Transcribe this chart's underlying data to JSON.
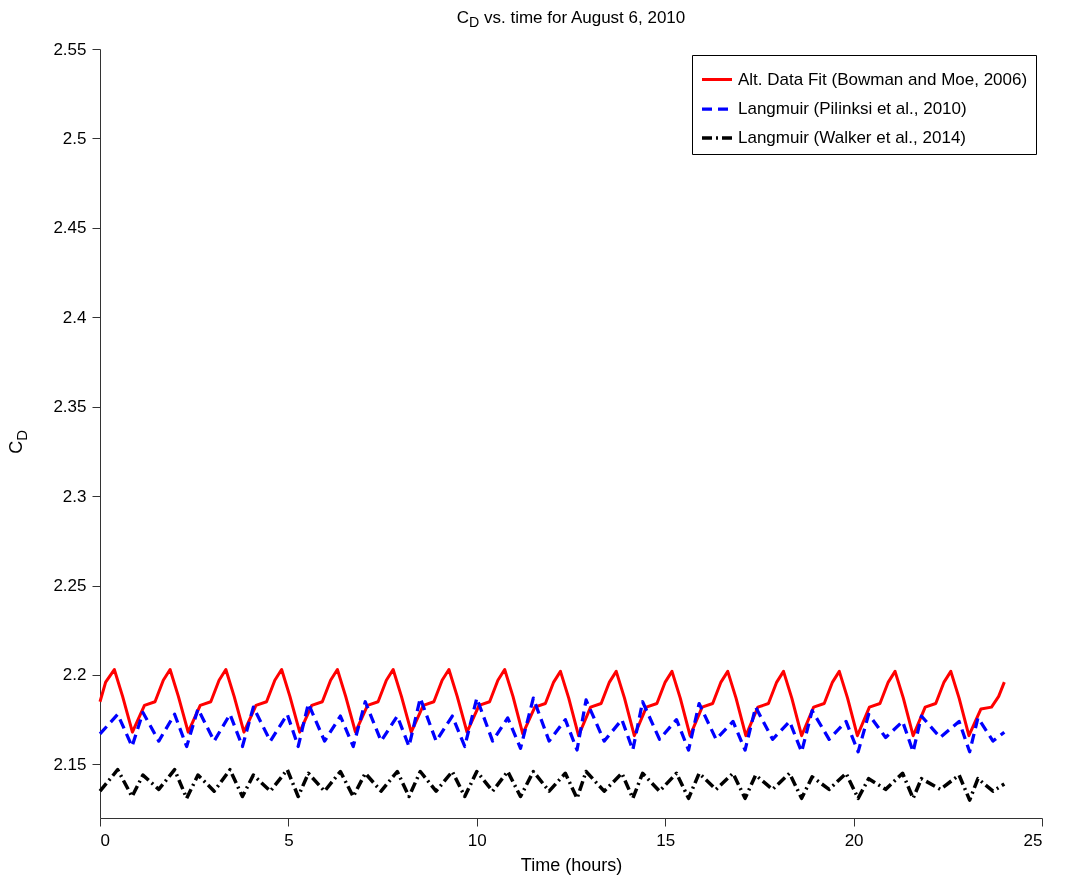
{
  "chart_data": {
    "type": "line",
    "title": "C$_{D}$ vs. time for August 6, 2010",
    "xlabel": "Time (hours)",
    "ylabel": "C$_{D}$",
    "xlim": [
      0,
      25
    ],
    "xticks": [
      0,
      5,
      10,
      15,
      20,
      25
    ],
    "ylim": [
      2.12,
      2.55
    ],
    "yticks": [
      2.15,
      2.2,
      2.25,
      2.3,
      2.35,
      2.4,
      2.45,
      2.5,
      2.55
    ],
    "grid": false,
    "legend": "top right",
    "marker": "none",
    "series": [
      {
        "name": "Alt. Data Fit (Bowman and Moe, 2006)",
        "color": "#ff0000",
        "line_style": "solid",
        "x": [
          0,
          0.15,
          0.38,
          0.6,
          0.86,
          1.18,
          1.46,
          1.68,
          1.86,
          2.08,
          2.34,
          2.66,
          2.94,
          3.16,
          3.34,
          3.56,
          3.82,
          4.14,
          4.42,
          4.64,
          4.82,
          5.04,
          5.3,
          5.62,
          5.9,
          6.12,
          6.3,
          6.52,
          6.78,
          7.1,
          7.38,
          7.6,
          7.78,
          8,
          8.26,
          8.58,
          8.86,
          9.08,
          9.26,
          9.48,
          9.74,
          10.06,
          10.34,
          10.56,
          10.74,
          10.96,
          11.22,
          11.54,
          11.82,
          12.04,
          12.22,
          12.44,
          12.7,
          13.02,
          13.3,
          13.52,
          13.7,
          13.92,
          14.18,
          14.5,
          14.78,
          15,
          15.18,
          15.4,
          15.66,
          15.98,
          16.26,
          16.48,
          16.66,
          16.88,
          17.14,
          17.46,
          17.74,
          17.96,
          18.14,
          18.36,
          18.62,
          18.94,
          19.22,
          19.44,
          19.62,
          19.84,
          20.1,
          20.42,
          20.7,
          20.92,
          21.1,
          21.32,
          21.58,
          21.9,
          22.18,
          22.4,
          22.58,
          22.8,
          23.06,
          23.38,
          23.66,
          23.85,
          24
        ],
        "values": [
          2.185,
          2.196,
          2.203,
          2.188,
          2.168,
          2.183,
          2.185,
          2.197,
          2.203,
          2.188,
          2.168,
          2.183,
          2.185,
          2.197,
          2.203,
          2.188,
          2.168,
          2.183,
          2.185,
          2.197,
          2.203,
          2.188,
          2.168,
          2.183,
          2.185,
          2.197,
          2.203,
          2.188,
          2.168,
          2.183,
          2.185,
          2.197,
          2.203,
          2.188,
          2.168,
          2.183,
          2.185,
          2.197,
          2.203,
          2.188,
          2.168,
          2.183,
          2.185,
          2.197,
          2.203,
          2.188,
          2.167,
          2.182,
          2.184,
          2.196,
          2.202,
          2.187,
          2.166,
          2.182,
          2.184,
          2.196,
          2.202,
          2.187,
          2.166,
          2.182,
          2.184,
          2.196,
          2.202,
          2.187,
          2.166,
          2.182,
          2.184,
          2.196,
          2.202,
          2.187,
          2.166,
          2.182,
          2.184,
          2.196,
          2.202,
          2.187,
          2.166,
          2.182,
          2.184,
          2.196,
          2.202,
          2.187,
          2.166,
          2.182,
          2.184,
          2.196,
          2.202,
          2.187,
          2.166,
          2.182,
          2.184,
          2.196,
          2.202,
          2.187,
          2.166,
          2.181,
          2.182,
          2.188,
          2.196
        ]
      },
      {
        "name": "Langmuir (Pilinksi et al., 2010)",
        "color": "#0000ff",
        "line_style": "dashed",
        "x": [
          0,
          0.47,
          0.85,
          1.14,
          1.56,
          1.98,
          2.3,
          2.6,
          3.03,
          3.45,
          3.78,
          4.07,
          4.52,
          4.97,
          5.26,
          5.53,
          5.96,
          6.38,
          6.72,
          7.04,
          7.46,
          7.89,
          8.2,
          8.5,
          8.92,
          9.35,
          9.68,
          10,
          10.42,
          10.82,
          11.16,
          11.5,
          11.92,
          12.35,
          12.66,
          12.9,
          13.38,
          13.85,
          14.14,
          14.4,
          14.85,
          15.3,
          15.62,
          15.9,
          16.35,
          16.8,
          17.12,
          17.4,
          17.85,
          18.3,
          18.62,
          18.9,
          19.35,
          19.8,
          20.12,
          20.4,
          20.85,
          21.3,
          21.58,
          21.8,
          22.3,
          22.8,
          23.08,
          23.3,
          23.7,
          24
        ],
        "values": [
          2.167,
          2.178,
          2.16,
          2.179,
          2.163,
          2.178,
          2.16,
          2.181,
          2.163,
          2.178,
          2.16,
          2.182,
          2.163,
          2.178,
          2.16,
          2.184,
          2.163,
          2.177,
          2.16,
          2.185,
          2.163,
          2.177,
          2.16,
          2.187,
          2.163,
          2.177,
          2.16,
          2.187,
          2.163,
          2.176,
          2.159,
          2.187,
          2.163,
          2.175,
          2.158,
          2.186,
          2.163,
          2.175,
          2.158,
          2.185,
          2.164,
          2.175,
          2.158,
          2.184,
          2.164,
          2.174,
          2.158,
          2.182,
          2.164,
          2.174,
          2.157,
          2.18,
          2.164,
          2.174,
          2.157,
          2.178,
          2.165,
          2.174,
          2.157,
          2.177,
          2.165,
          2.174,
          2.157,
          2.176,
          2.163,
          2.168
        ]
      },
      {
        "name": "Langmuir (Walker et al., 2014)",
        "color": "#000000",
        "line_style": "dashdot",
        "x": [
          0,
          0.47,
          0.85,
          1.14,
          1.56,
          1.98,
          2.3,
          2.6,
          3.03,
          3.45,
          3.78,
          4.07,
          4.52,
          4.97,
          5.26,
          5.53,
          5.96,
          6.38,
          6.72,
          7.04,
          7.46,
          7.89,
          8.2,
          8.5,
          8.92,
          9.35,
          9.68,
          10,
          10.42,
          10.82,
          11.16,
          11.5,
          11.92,
          12.35,
          12.66,
          12.9,
          13.38,
          13.85,
          14.14,
          14.4,
          14.85,
          15.3,
          15.62,
          15.9,
          16.35,
          16.8,
          17.12,
          17.4,
          17.85,
          18.3,
          18.62,
          18.9,
          19.35,
          19.8,
          20.12,
          20.4,
          20.85,
          21.3,
          21.58,
          21.8,
          22.3,
          22.8,
          23.08,
          23.3,
          23.7,
          24
        ],
        "values": [
          2.135,
          2.147,
          2.132,
          2.144,
          2.136,
          2.147,
          2.131,
          2.144,
          2.135,
          2.147,
          2.132,
          2.144,
          2.135,
          2.147,
          2.132,
          2.145,
          2.135,
          2.146,
          2.132,
          2.145,
          2.135,
          2.146,
          2.132,
          2.146,
          2.135,
          2.146,
          2.132,
          2.146,
          2.135,
          2.146,
          2.132,
          2.146,
          2.135,
          2.145,
          2.131,
          2.146,
          2.135,
          2.145,
          2.131,
          2.145,
          2.135,
          2.145,
          2.131,
          2.145,
          2.136,
          2.145,
          2.131,
          2.144,
          2.136,
          2.145,
          2.131,
          2.143,
          2.136,
          2.145,
          2.131,
          2.142,
          2.136,
          2.145,
          2.131,
          2.142,
          2.136,
          2.144,
          2.13,
          2.142,
          2.135,
          2.139
        ]
      }
    ]
  }
}
